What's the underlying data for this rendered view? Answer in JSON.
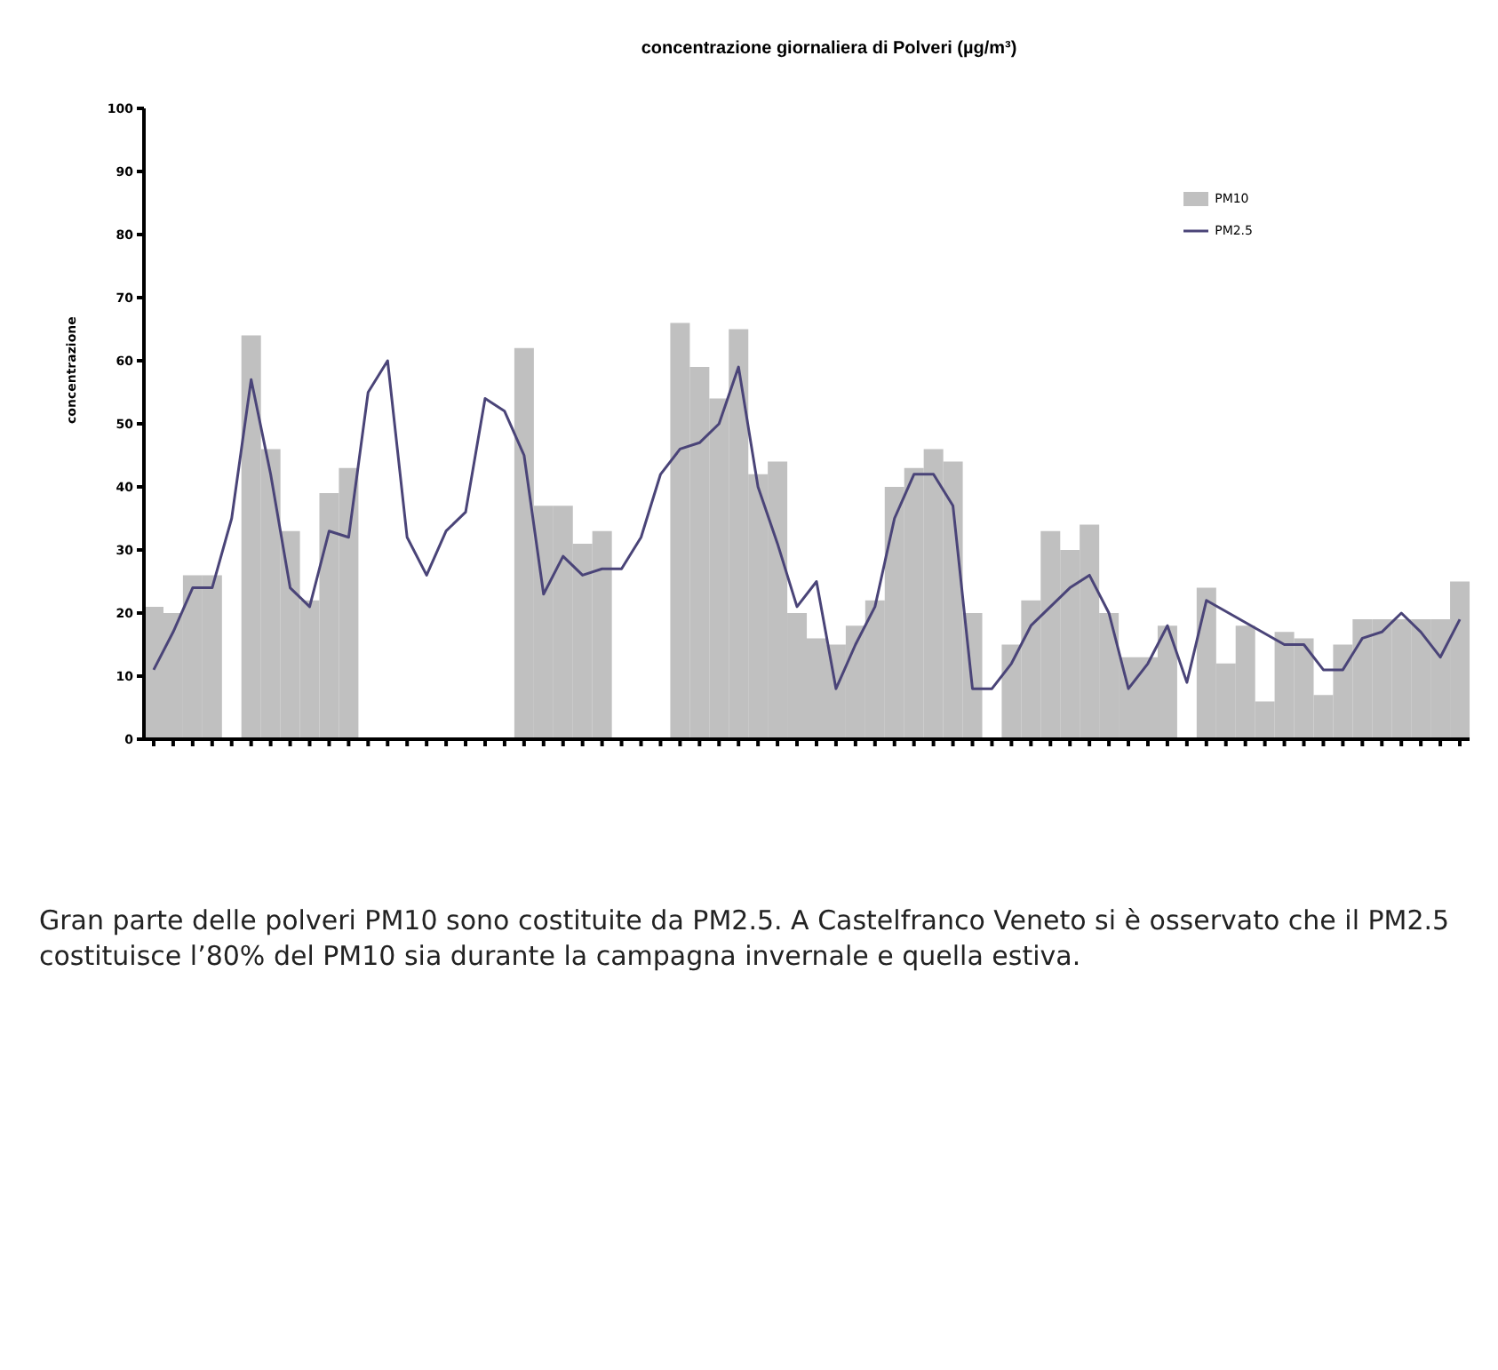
{
  "chart_data": {
    "type": "bar",
    "title": "concentrazione giornaliera di Polveri (µg/m³)",
    "ylabel": "concentrazione",
    "categories": [
      null,
      null,
      null,
      null,
      null,
      null,
      null,
      null,
      null,
      null,
      null,
      null,
      null,
      null,
      null,
      null,
      null,
      null,
      null,
      null,
      null,
      null,
      null,
      null,
      null,
      null,
      null,
      null,
      null,
      null,
      null,
      null,
      null,
      null,
      null,
      null,
      null,
      null,
      null,
      null,
      null,
      null,
      null,
      null,
      null,
      null,
      null,
      null,
      null,
      null,
      null,
      null,
      null,
      null,
      null,
      null,
      null,
      null,
      null,
      null,
      null,
      null,
      null,
      null,
      null,
      null,
      null,
      null
    ],
    "series": [
      {
        "name": "PM10",
        "color": "#c0c0c0",
        "values": [
          21,
          20,
          26,
          26,
          null,
          64,
          46,
          33,
          22,
          39,
          43,
          null,
          null,
          null,
          null,
          null,
          null,
          null,
          null,
          62,
          37,
          37,
          31,
          33,
          null,
          null,
          null,
          66,
          59,
          54,
          65,
          42,
          44,
          20,
          16,
          15,
          18,
          22,
          40,
          43,
          46,
          44,
          20,
          null,
          15,
          22,
          33,
          30,
          34,
          20,
          13,
          13,
          18,
          null,
          24,
          12,
          18,
          6,
          17,
          16,
          7,
          15,
          19,
          19,
          19,
          19,
          19,
          25
        ]
      },
      {
        "name": "PM2.5",
        "type": "line",
        "color": "#4a4478",
        "values": [
          11,
          17,
          24,
          24,
          35,
          57,
          42,
          24,
          21,
          33,
          32,
          55,
          60,
          32,
          26,
          33,
          36,
          54,
          52,
          45,
          23,
          29,
          26,
          27,
          27,
          32,
          42,
          46,
          47,
          50,
          59,
          40,
          31,
          21,
          25,
          8,
          15,
          21,
          35,
          42,
          42,
          37,
          8,
          8,
          12,
          18,
          21,
          24,
          26,
          20,
          8,
          12,
          18,
          9,
          22,
          null,
          null,
          null,
          15,
          15,
          11,
          11,
          16,
          17,
          20,
          17,
          13,
          19
        ]
      }
    ],
    "ylim": [
      0,
      100
    ],
    "yticks": [
      0,
      10,
      20,
      30,
      40,
      50,
      60,
      70,
      80,
      90,
      100
    ],
    "legend": "top right",
    "marker": "none",
    "line_style": "solid",
    "annotations": [
      "Gran parte delle polveri PM10 sono costituite da PM2.5. A Castelfranco Veneto si è osservato che il PM2.5 costituisce l’80% del PM10 sia durante la campagna invernale e quella estiva."
    ]
  }
}
